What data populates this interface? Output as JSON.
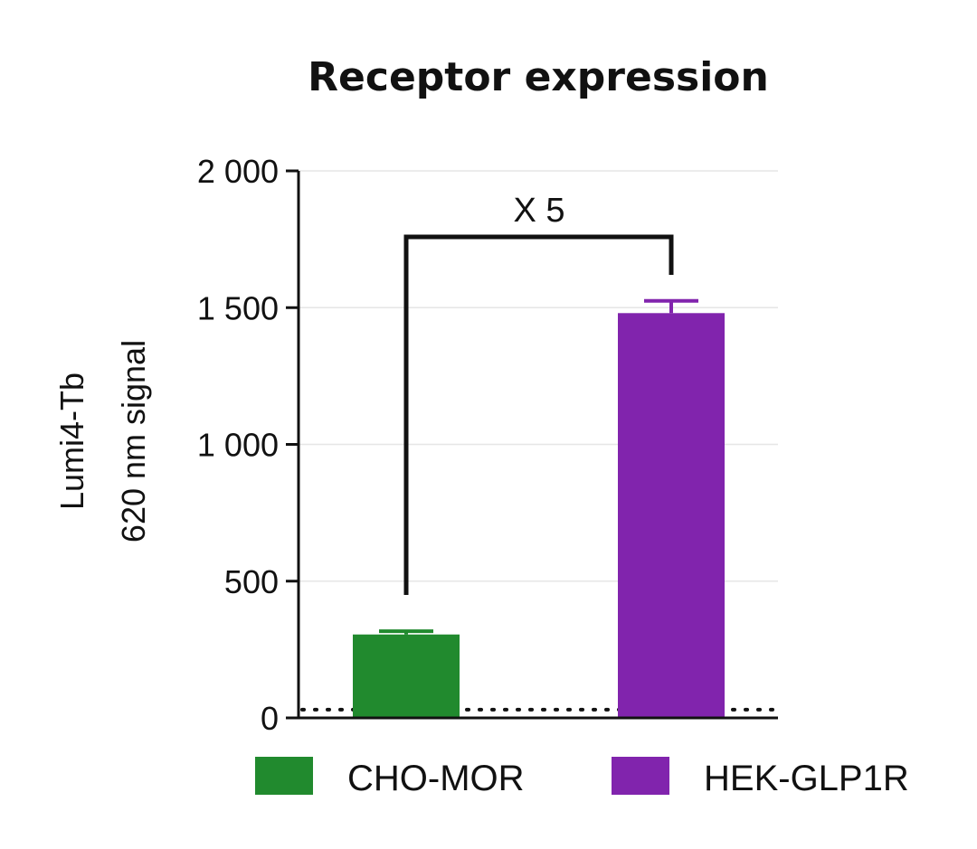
{
  "chart_data": {
    "type": "bar",
    "title": "Receptor expression",
    "ylabel_lines": [
      "Lumi4-Tb",
      "620 nm signal"
    ],
    "xlabel": "",
    "categories": [
      "CHO-MOR",
      "HEK-GLP1R"
    ],
    "values": [
      305,
      1480
    ],
    "errors": [
      12,
      45
    ],
    "colors": [
      "#218a2e",
      "#8124ad"
    ],
    "ylim": [
      0,
      2000
    ],
    "yticks": [
      0,
      500,
      1000,
      1500,
      2000
    ],
    "ytick_labels": [
      "0",
      "500",
      "1 000",
      "1 500",
      "2 000"
    ],
    "grid": true,
    "baseline_dotted": 30,
    "annotation": "X 5",
    "legend_position": "bottom",
    "legend": [
      {
        "label": "CHO-MOR",
        "color": "#218a2e"
      },
      {
        "label": "HEK-GLP1R",
        "color": "#8124ad"
      }
    ]
  }
}
